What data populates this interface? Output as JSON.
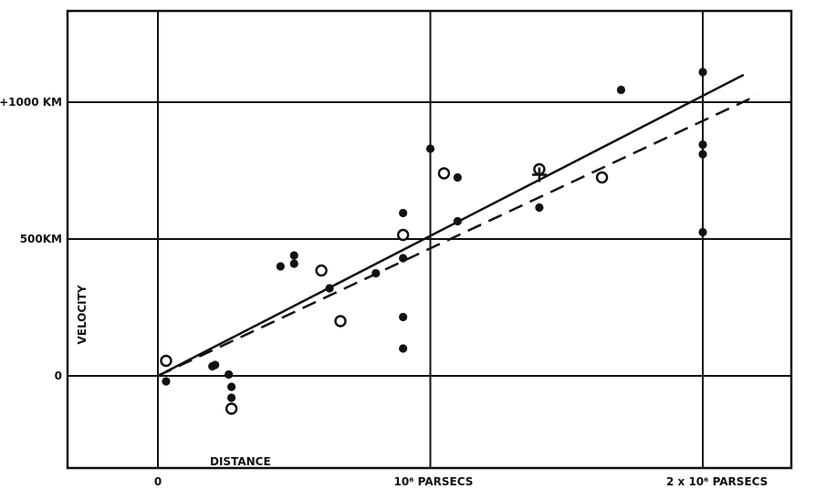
{
  "chart_data": {
    "type": "scatter",
    "title": "",
    "xlabel": "DISTANCE",
    "ylabel": "VELOCITY",
    "xlim": [
      -0.33,
      2.33
    ],
    "ylim": [
      -333,
      1333
    ],
    "grid": true,
    "x_ticks": [
      {
        "value": 0,
        "label": "0"
      },
      {
        "value": 1,
        "label": "10⁶ PARSECS"
      },
      {
        "value": 2,
        "label": "2 x 10⁶ PARSECS"
      }
    ],
    "y_ticks": [
      {
        "value": 0,
        "label": "0"
      },
      {
        "value": 500,
        "label": "500KM"
      },
      {
        "value": 1000,
        "label": "+1000 KM"
      }
    ],
    "series": [
      {
        "marker": "filled-circle",
        "color": "#111111",
        "points": [
          {
            "x": 0.03,
            "y": -20
          },
          {
            "x": 0.2,
            "y": 35
          },
          {
            "x": 0.21,
            "y": 40
          },
          {
            "x": 0.26,
            "y": 5
          },
          {
            "x": 0.27,
            "y": -40
          },
          {
            "x": 0.27,
            "y": -80
          },
          {
            "x": 0.45,
            "y": 400
          },
          {
            "x": 0.5,
            "y": 440
          },
          {
            "x": 0.5,
            "y": 410
          },
          {
            "x": 0.63,
            "y": 320
          },
          {
            "x": 0.8,
            "y": 375
          },
          {
            "x": 0.9,
            "y": 595
          },
          {
            "x": 0.9,
            "y": 430
          },
          {
            "x": 0.9,
            "y": 215
          },
          {
            "x": 0.9,
            "y": 100
          },
          {
            "x": 1.0,
            "y": 830
          },
          {
            "x": 1.1,
            "y": 725
          },
          {
            "x": 1.1,
            "y": 565
          },
          {
            "x": 1.4,
            "y": 760
          },
          {
            "x": 1.4,
            "y": 615
          },
          {
            "x": 1.7,
            "y": 1045
          },
          {
            "x": 2.0,
            "y": 1110
          },
          {
            "x": 2.0,
            "y": 845
          },
          {
            "x": 2.0,
            "y": 810
          },
          {
            "x": 2.0,
            "y": 525
          }
        ]
      },
      {
        "marker": "open-circle",
        "color": "#111111",
        "points": [
          {
            "x": 0.03,
            "y": 55
          },
          {
            "x": 0.27,
            "y": -120
          },
          {
            "x": 0.6,
            "y": 385
          },
          {
            "x": 0.67,
            "y": 200
          },
          {
            "x": 0.9,
            "y": 515
          },
          {
            "x": 1.05,
            "y": 740
          },
          {
            "x": 1.4,
            "y": 755
          },
          {
            "x": 1.63,
            "y": 725
          }
        ]
      },
      {
        "marker": "cross",
        "color": "#111111",
        "points": [
          {
            "x": 1.4,
            "y": 735
          }
        ]
      }
    ],
    "lines": [
      {
        "style": "solid",
        "color": "#111111",
        "points": [
          {
            "x": 0,
            "y": 0
          },
          {
            "x": 2.15,
            "y": 1100
          }
        ]
      },
      {
        "style": "dashed",
        "color": "#111111",
        "points": [
          {
            "x": 0,
            "y": 0
          },
          {
            "x": 2.2,
            "y": 1025
          }
        ]
      }
    ]
  }
}
